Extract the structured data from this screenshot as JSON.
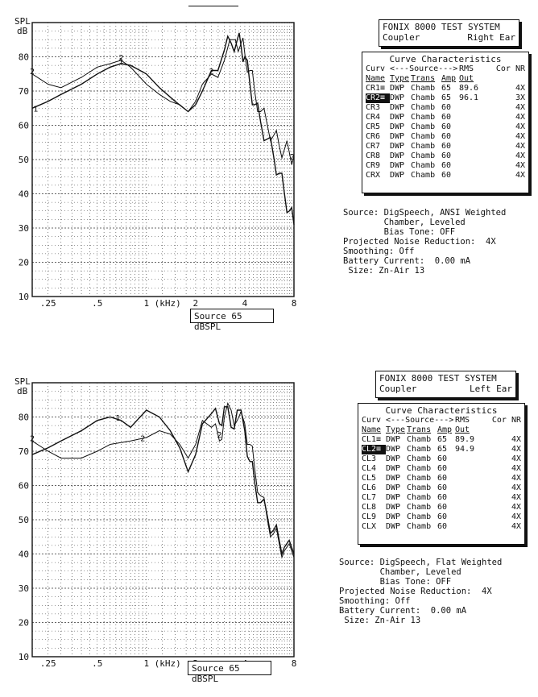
{
  "charts": [
    {
      "id": "right",
      "header": {
        "title": "FONIX 8000 TEST SYSTEM",
        "left": "Coupler",
        "right": "Right Ear"
      },
      "table": {
        "title": "Curve Characteristics",
        "head1": [
          "Curv",
          "<---Source--->",
          "RMS",
          "Cor NR"
        ],
        "head2": [
          "Name",
          "Type",
          "Trans",
          "Amp",
          "Out",
          ""
        ],
        "rows": [
          [
            "CR1≡",
            "DWP",
            "Chamb",
            "65",
            "89.6",
            "4X"
          ],
          [
            "CR2≡",
            "DWP",
            "Chamb",
            "65",
            "96.1",
            "3X"
          ],
          [
            "CR3",
            "DWP",
            "Chamb",
            "60",
            "",
            "4X"
          ],
          [
            "CR4",
            "DWP",
            "Chamb",
            "60",
            "",
            "4X"
          ],
          [
            "CR5",
            "DWP",
            "Chamb",
            "60",
            "",
            "4X"
          ],
          [
            "CR6",
            "DWP",
            "Chamb",
            "60",
            "",
            "4X"
          ],
          [
            "CR7",
            "DWP",
            "Chamb",
            "60",
            "",
            "4X"
          ],
          [
            "CR8",
            "DWP",
            "Chamb",
            "60",
            "",
            "4X"
          ],
          [
            "CR9",
            "DWP",
            "Chamb",
            "60",
            "",
            "4X"
          ],
          [
            "CRX",
            "DWP",
            "Chamb",
            "60",
            "",
            "4X"
          ]
        ]
      },
      "info": [
        "Source: DigSpeech, ANSI Weighted",
        "        Chamber, Leveled",
        "        Bias Tone: OFF",
        "Projected Noise Reduction:  4X",
        "Smoothing: Off",
        "Battery Current:  0.00 mA",
        " Size: Zn-Air 13"
      ],
      "source_label": "Source  65 dBSPL"
    },
    {
      "id": "left",
      "header": {
        "title": "FONIX 8000 TEST SYSTEM",
        "left": "Coupler",
        "right": "Left Ear"
      },
      "table": {
        "title": "Curve Characteristics",
        "head1": [
          "Curv",
          "<---Source--->",
          "RMS",
          "Cor NR"
        ],
        "head2": [
          "Name",
          "Type",
          "Trans",
          "Amp",
          "Out",
          ""
        ],
        "rows": [
          [
            "CL1≡",
            "DWP",
            "Chamb",
            "65",
            "89.9",
            "4X"
          ],
          [
            "CL2≡",
            "DWP",
            "Chamb",
            "65",
            "94.9",
            "4X"
          ],
          [
            "CL3",
            "DWP",
            "Chamb",
            "60",
            "",
            "4X"
          ],
          [
            "CL4",
            "DWP",
            "Chamb",
            "60",
            "",
            "4X"
          ],
          [
            "CL5",
            "DWP",
            "Chamb",
            "60",
            "",
            "4X"
          ],
          [
            "CL6",
            "DWP",
            "Chamb",
            "60",
            "",
            "4X"
          ],
          [
            "CL7",
            "DWP",
            "Chamb",
            "60",
            "",
            "4X"
          ],
          [
            "CL8",
            "DWP",
            "Chamb",
            "60",
            "",
            "4X"
          ],
          [
            "CL9",
            "DWP",
            "Chamb",
            "60",
            "",
            "4X"
          ],
          [
            "CLX",
            "DWP",
            "Chamb",
            "60",
            "",
            "4X"
          ]
        ]
      },
      "info": [
        "Source: DigSpeech, Flat Weighted",
        "        Chamber, Leveled",
        "        Bias Tone: OFF",
        "Projected Noise Reduction:  4X",
        "Smoothing: Off",
        "Battery Current:  0.00 mA",
        " Size: Zn-Air 13"
      ],
      "source_label": "Source  65 dBSPL"
    }
  ],
  "chart_data": [
    {
      "type": "line",
      "ylabel": "SPL dB",
      "xlabel": "(kHz)",
      "x_scale": "log",
      "xlim": [
        0.2,
        8
      ],
      "ylim": [
        10,
        90
      ],
      "x_ticks": [
        ".25",
        ".5",
        "1",
        "2",
        "4",
        "8"
      ],
      "y_ticks": [
        "80",
        "70",
        "60",
        "50",
        "40",
        "30",
        "20",
        "10"
      ],
      "grid": true,
      "series": [
        {
          "name": "1",
          "label_at": [
            [
              0.21,
              64
            ],
            [
              0.7,
              78
            ]
          ],
          "x": [
            0.2,
            0.25,
            0.3,
            0.4,
            0.5,
            0.6,
            0.7,
            0.8,
            1.0,
            1.2,
            1.5,
            1.8,
            2.0,
            2.2,
            2.5,
            3.0,
            3.3,
            3.6,
            3.8,
            4.0,
            4.3,
            4.6,
            5.0,
            5.5,
            6.0,
            6.5,
            7.0,
            7.5,
            8.0
          ],
          "y": [
            65,
            67,
            69,
            72,
            75,
            77,
            78,
            77.5,
            75,
            71,
            67,
            64,
            66,
            70,
            76,
            82,
            84,
            85,
            83,
            80,
            72,
            66,
            61,
            56,
            51,
            46,
            40,
            35,
            31
          ]
        },
        {
          "name": "2",
          "label_at": [
            [
              0.2,
              75
            ],
            [
              0.7,
              79
            ],
            [
              2.5,
              75
            ],
            [
              7.8,
              50
            ]
          ],
          "x": [
            0.2,
            0.25,
            0.3,
            0.4,
            0.5,
            0.6,
            0.7,
            0.8,
            1.0,
            1.2,
            1.4,
            1.6,
            1.8,
            2.0,
            2.2,
            2.5,
            3.0,
            3.5,
            3.8,
            4.0,
            4.3,
            4.6,
            5.0,
            5.5,
            6.0,
            6.5,
            7.0,
            7.5,
            8.0
          ],
          "y": [
            75,
            72,
            71,
            74,
            77,
            78,
            79,
            77,
            72,
            69,
            67,
            66,
            64,
            67,
            72,
            75,
            79,
            85,
            84,
            81,
            76,
            70,
            64,
            60,
            57,
            54,
            53,
            52,
            51
          ]
        }
      ]
    },
    {
      "type": "line",
      "ylabel": "SPL dB",
      "xlabel": "(kHz)",
      "x_scale": "log",
      "xlim": [
        0.2,
        8
      ],
      "ylim": [
        10,
        90
      ],
      "x_ticks": [
        ".25",
        ".5",
        "1",
        "2",
        "4",
        "8"
      ],
      "y_ticks": [
        "80",
        "70",
        "60",
        "50",
        "40",
        "30",
        "20",
        "10"
      ],
      "grid": true,
      "series": [
        {
          "name": "1",
          "label_at": [
            [
              0.67,
              79
            ]
          ],
          "x": [
            0.2,
            0.25,
            0.3,
            0.4,
            0.5,
            0.6,
            0.7,
            0.8,
            1.0,
            1.2,
            1.4,
            1.6,
            1.8,
            2.0,
            2.2,
            2.5,
            2.8,
            3.0,
            3.3,
            3.6,
            4.0,
            4.3,
            4.6,
            5.0,
            5.5,
            6.0,
            6.5,
            7.0,
            8.0
          ],
          "y": [
            69,
            71,
            73,
            76,
            79,
            80,
            79,
            77,
            82,
            80,
            76,
            71,
            64,
            69,
            78,
            81,
            78,
            83,
            77,
            82,
            76,
            67,
            61,
            55,
            51,
            47,
            44,
            42,
            40
          ]
        },
        {
          "name": "2",
          "label_at": [
            [
              0.2,
              73
            ],
            [
              0.95,
              73
            ],
            [
              2.8,
              74
            ]
          ],
          "x": [
            0.2,
            0.25,
            0.3,
            0.4,
            0.5,
            0.6,
            0.8,
            1.0,
            1.2,
            1.4,
            1.6,
            1.8,
            2.0,
            2.2,
            2.5,
            2.8,
            3.0,
            3.3,
            3.6,
            4.0,
            4.3,
            4.6,
            5.0,
            5.5,
            6.0,
            6.5,
            7.0,
            8.0
          ],
          "y": [
            73,
            70,
            68,
            68,
            70,
            72,
            73,
            74,
            76,
            75,
            72,
            68,
            72,
            79,
            77,
            73,
            80,
            82,
            79,
            78,
            72,
            65,
            57,
            50,
            46,
            43,
            41,
            39
          ]
        }
      ]
    }
  ]
}
